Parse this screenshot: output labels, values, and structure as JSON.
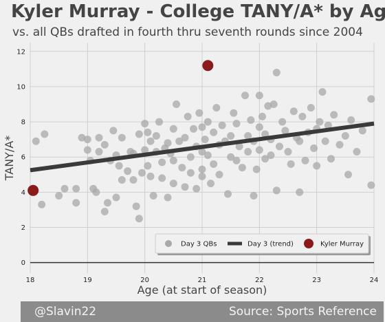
{
  "header": {
    "title": "Kyler Murray - College TANY/A* by Age",
    "subtitle": "vs. all QBs drafted in fourth thru seventh rounds since 2004"
  },
  "footer": {
    "left": "@Slavin22",
    "right": "Source: Sports Reference"
  },
  "colors": {
    "background": "#f0f0f0",
    "scatter": "#a8a8a8",
    "trend": "#3a3a3a",
    "highlight": "#8b1a1a",
    "grid": "#cfcfcf",
    "footer": "#8b8b8b"
  },
  "chart_data": {
    "type": "scatter",
    "xlabel": "Age (at start of season)",
    "ylabel": "TANY/A*",
    "xlim": [
      18,
      24
    ],
    "ylim": [
      -0.6,
      12.5
    ],
    "xticks": [
      18,
      19,
      20,
      21,
      22,
      23,
      24
    ],
    "yticks": [
      0,
      2,
      4,
      6,
      8,
      10,
      12
    ],
    "grid": true,
    "legend_position": "bottom-right",
    "legend": [
      "Day 3 QBs",
      "Day 3 (trend)",
      "Kyler Murray"
    ],
    "series": [
      {
        "name": "Day 3 QBs",
        "points": [
          [
            18.1,
            6.9
          ],
          [
            18.2,
            3.3
          ],
          [
            18.25,
            7.3
          ],
          [
            18.5,
            3.8
          ],
          [
            18.6,
            4.2
          ],
          [
            18.8,
            4.2
          ],
          [
            18.8,
            3.4
          ],
          [
            18.9,
            7.1
          ],
          [
            19.0,
            7.0
          ],
          [
            19.0,
            6.4
          ],
          [
            19.05,
            5.8
          ],
          [
            19.1,
            4.2
          ],
          [
            19.15,
            4.0
          ],
          [
            19.2,
            6.3
          ],
          [
            19.2,
            7.1
          ],
          [
            19.3,
            6.7
          ],
          [
            19.3,
            2.9
          ],
          [
            19.35,
            3.4
          ],
          [
            19.4,
            5.8
          ],
          [
            19.45,
            7.5
          ],
          [
            19.5,
            3.7
          ],
          [
            19.5,
            6.1
          ],
          [
            19.55,
            5.5
          ],
          [
            19.6,
            4.7
          ],
          [
            19.6,
            7.1
          ],
          [
            19.7,
            5.2
          ],
          [
            19.75,
            6.3
          ],
          [
            19.8,
            4.7
          ],
          [
            19.8,
            6.2
          ],
          [
            19.85,
            3.2
          ],
          [
            19.9,
            2.5
          ],
          [
            19.9,
            7.3
          ],
          [
            19.95,
            5.1
          ],
          [
            20.0,
            6.4
          ],
          [
            20.0,
            7.9
          ],
          [
            20.05,
            5.5
          ],
          [
            20.05,
            7.4
          ],
          [
            20.1,
            4.9
          ],
          [
            20.1,
            6.9
          ],
          [
            20.15,
            3.8
          ],
          [
            20.2,
            6.3
          ],
          [
            20.2,
            7.2
          ],
          [
            20.25,
            8.0
          ],
          [
            20.3,
            5.7
          ],
          [
            20.3,
            4.8
          ],
          [
            20.35,
            6.5
          ],
          [
            20.4,
            3.7
          ],
          [
            20.4,
            6.8
          ],
          [
            20.45,
            6.2
          ],
          [
            20.5,
            5.8
          ],
          [
            20.5,
            7.6
          ],
          [
            20.5,
            4.5
          ],
          [
            20.55,
            9.0
          ],
          [
            20.6,
            6.9
          ],
          [
            20.65,
            5.4
          ],
          [
            20.7,
            7.1
          ],
          [
            20.7,
            4.3
          ],
          [
            20.75,
            8.3
          ],
          [
            20.8,
            6.0
          ],
          [
            20.8,
            5.1
          ],
          [
            20.85,
            7.6
          ],
          [
            20.9,
            6.6
          ],
          [
            20.9,
            4.2
          ],
          [
            20.95,
            8.5
          ],
          [
            21.0,
            6.3
          ],
          [
            21.0,
            7.7
          ],
          [
            21.0,
            5.3
          ],
          [
            21.0,
            4.9
          ],
          [
            21.05,
            7.0
          ],
          [
            21.1,
            8.0
          ],
          [
            21.1,
            6.1
          ],
          [
            21.15,
            4.5
          ],
          [
            21.2,
            5.6
          ],
          [
            21.2,
            7.4
          ],
          [
            21.25,
            8.8
          ],
          [
            21.3,
            6.7
          ],
          [
            21.3,
            5.0
          ],
          [
            21.35,
            7.8
          ],
          [
            21.4,
            6.9
          ],
          [
            21.45,
            3.9
          ],
          [
            21.5,
            7.2
          ],
          [
            21.5,
            6.0
          ],
          [
            21.55,
            8.5
          ],
          [
            21.6,
            5.8
          ],
          [
            21.6,
            7.9
          ],
          [
            21.65,
            6.6
          ],
          [
            21.7,
            5.4
          ],
          [
            21.75,
            9.5
          ],
          [
            21.8,
            7.2
          ],
          [
            21.8,
            6.3
          ],
          [
            21.85,
            8.1
          ],
          [
            21.9,
            3.8
          ],
          [
            21.9,
            6.9
          ],
          [
            21.95,
            5.3
          ],
          [
            22.0,
            7.7
          ],
          [
            22.0,
            9.5
          ],
          [
            22.0,
            6.4
          ],
          [
            22.05,
            8.3
          ],
          [
            22.1,
            5.9
          ],
          [
            22.1,
            7.3
          ],
          [
            22.15,
            8.9
          ],
          [
            22.2,
            6.1
          ],
          [
            22.2,
            7.0
          ],
          [
            22.25,
            9.0
          ],
          [
            22.3,
            10.8
          ],
          [
            22.3,
            4.1
          ],
          [
            22.35,
            6.6
          ],
          [
            22.4,
            8.0
          ],
          [
            22.45,
            7.5
          ],
          [
            22.5,
            6.3
          ],
          [
            22.55,
            5.6
          ],
          [
            22.6,
            8.6
          ],
          [
            22.65,
            7.1
          ],
          [
            22.7,
            4.0
          ],
          [
            22.7,
            6.9
          ],
          [
            22.75,
            8.3
          ],
          [
            22.8,
            5.8
          ],
          [
            22.85,
            7.4
          ],
          [
            22.9,
            8.8
          ],
          [
            22.95,
            6.5
          ],
          [
            23.0,
            7.6
          ],
          [
            23.0,
            5.5
          ],
          [
            23.05,
            8.0
          ],
          [
            23.1,
            9.7
          ],
          [
            23.15,
            6.9
          ],
          [
            23.2,
            7.8
          ],
          [
            23.25,
            5.9
          ],
          [
            23.3,
            8.4
          ],
          [
            23.4,
            6.7
          ],
          [
            23.5,
            7.2
          ],
          [
            23.55,
            5.0
          ],
          [
            23.6,
            8.1
          ],
          [
            23.7,
            6.3
          ],
          [
            23.8,
            7.5
          ],
          [
            23.95,
            4.4
          ],
          [
            23.95,
            9.3
          ]
        ]
      },
      {
        "name": "Day 3 (trend)",
        "points": [
          [
            18,
            5.25
          ],
          [
            24,
            7.9
          ]
        ]
      },
      {
        "name": "Kyler Murray",
        "points": [
          [
            18.05,
            4.1
          ],
          [
            21.1,
            11.2
          ]
        ]
      }
    ]
  }
}
